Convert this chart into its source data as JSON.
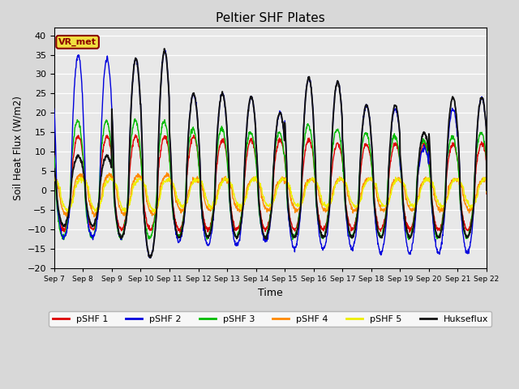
{
  "title": "Peltier SHF Plates",
  "xlabel": "Time",
  "ylabel": "Soil Heat Flux (W/m2)",
  "ylim": [
    -20,
    42
  ],
  "yticks": [
    -20,
    -15,
    -10,
    -5,
    0,
    5,
    10,
    15,
    20,
    25,
    30,
    35,
    40
  ],
  "background_color": "#d8d8d8",
  "plot_background": "#e8e8e8",
  "series_colors": {
    "pSHF 1": "#dd0000",
    "pSHF 2": "#0000dd",
    "pSHF 3": "#00bb00",
    "pSHF 4": "#ff8800",
    "pSHF 5": "#eeee00",
    "Hukseflux": "#111111"
  },
  "legend_label": "VR_met",
  "days": 15,
  "xtick_labels": [
    "Sep 7",
    "Sep 8",
    "Sep 9",
    "Sep 10",
    "Sep 11",
    "Sep 12",
    "Sep 13",
    "Sep 14",
    "Sep 15",
    "Sep 16",
    "Sep 17",
    "Sep 18",
    "Sep 19",
    "Sep 20",
    "Sep 21",
    "Sep 22"
  ],
  "linewidth": 1.0
}
